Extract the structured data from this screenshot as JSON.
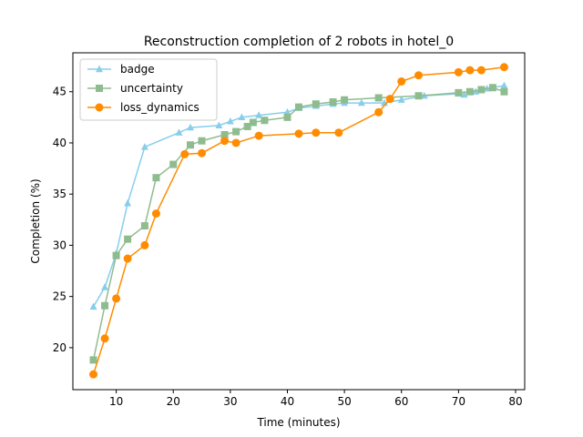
{
  "chart_data": {
    "type": "line",
    "title": "Reconstruction completion of 2 robots in hotel_0",
    "xlabel": "Time (minutes)",
    "ylabel": "Completion (%)",
    "xlim": [
      2.4,
      81.6
    ],
    "ylim": [
      15.9,
      48.8
    ],
    "xticks": [
      10,
      20,
      30,
      40,
      50,
      60,
      70,
      80
    ],
    "yticks": [
      20,
      25,
      30,
      35,
      40,
      45
    ],
    "grid": false,
    "legend_position": "upper-left",
    "series": [
      {
        "name": "badge",
        "color": "#87ceeb",
        "marker": "triangle",
        "x": [
          6,
          8,
          10,
          12,
          15,
          21,
          23,
          28,
          30,
          32,
          35,
          40,
          42,
          45,
          48,
          50,
          53,
          57,
          60,
          64,
          70,
          71,
          73,
          75,
          78
        ],
        "y": [
          24.0,
          25.9,
          29.2,
          34.1,
          39.6,
          41.0,
          41.5,
          41.7,
          42.1,
          42.5,
          42.7,
          43.0,
          43.4,
          43.6,
          43.8,
          43.9,
          43.9,
          43.9,
          44.2,
          44.6,
          44.8,
          44.7,
          45.0,
          45.3,
          45.6
        ]
      },
      {
        "name": "uncertainty",
        "color": "#8fbc8f",
        "marker": "square",
        "x": [
          6,
          8,
          10,
          12,
          15,
          17,
          20,
          23,
          25,
          29,
          31,
          33,
          34,
          36,
          40,
          42,
          45,
          48,
          50,
          56,
          63,
          70,
          72,
          74,
          76,
          78
        ],
        "y": [
          18.8,
          24.1,
          29.0,
          30.6,
          31.9,
          36.6,
          37.9,
          39.8,
          40.2,
          40.8,
          41.1,
          41.6,
          42.0,
          42.2,
          42.5,
          43.5,
          43.8,
          44.0,
          44.2,
          44.4,
          44.6,
          44.9,
          45.0,
          45.2,
          45.4,
          45.0
        ]
      },
      {
        "name": "loss_dynamics",
        "color": "#ff8c00",
        "marker": "circle",
        "x": [
          6,
          8,
          10,
          12,
          15,
          17,
          22,
          25,
          29,
          31,
          35,
          42,
          45,
          49,
          56,
          58,
          60,
          63,
          70,
          72,
          74,
          78
        ],
        "y": [
          17.4,
          20.9,
          24.8,
          28.7,
          30.0,
          33.1,
          38.9,
          39.0,
          40.2,
          40.0,
          40.7,
          40.9,
          41.0,
          41.0,
          43.0,
          44.3,
          46.0,
          46.6,
          46.9,
          47.1,
          47.1,
          47.4
        ]
      }
    ]
  }
}
